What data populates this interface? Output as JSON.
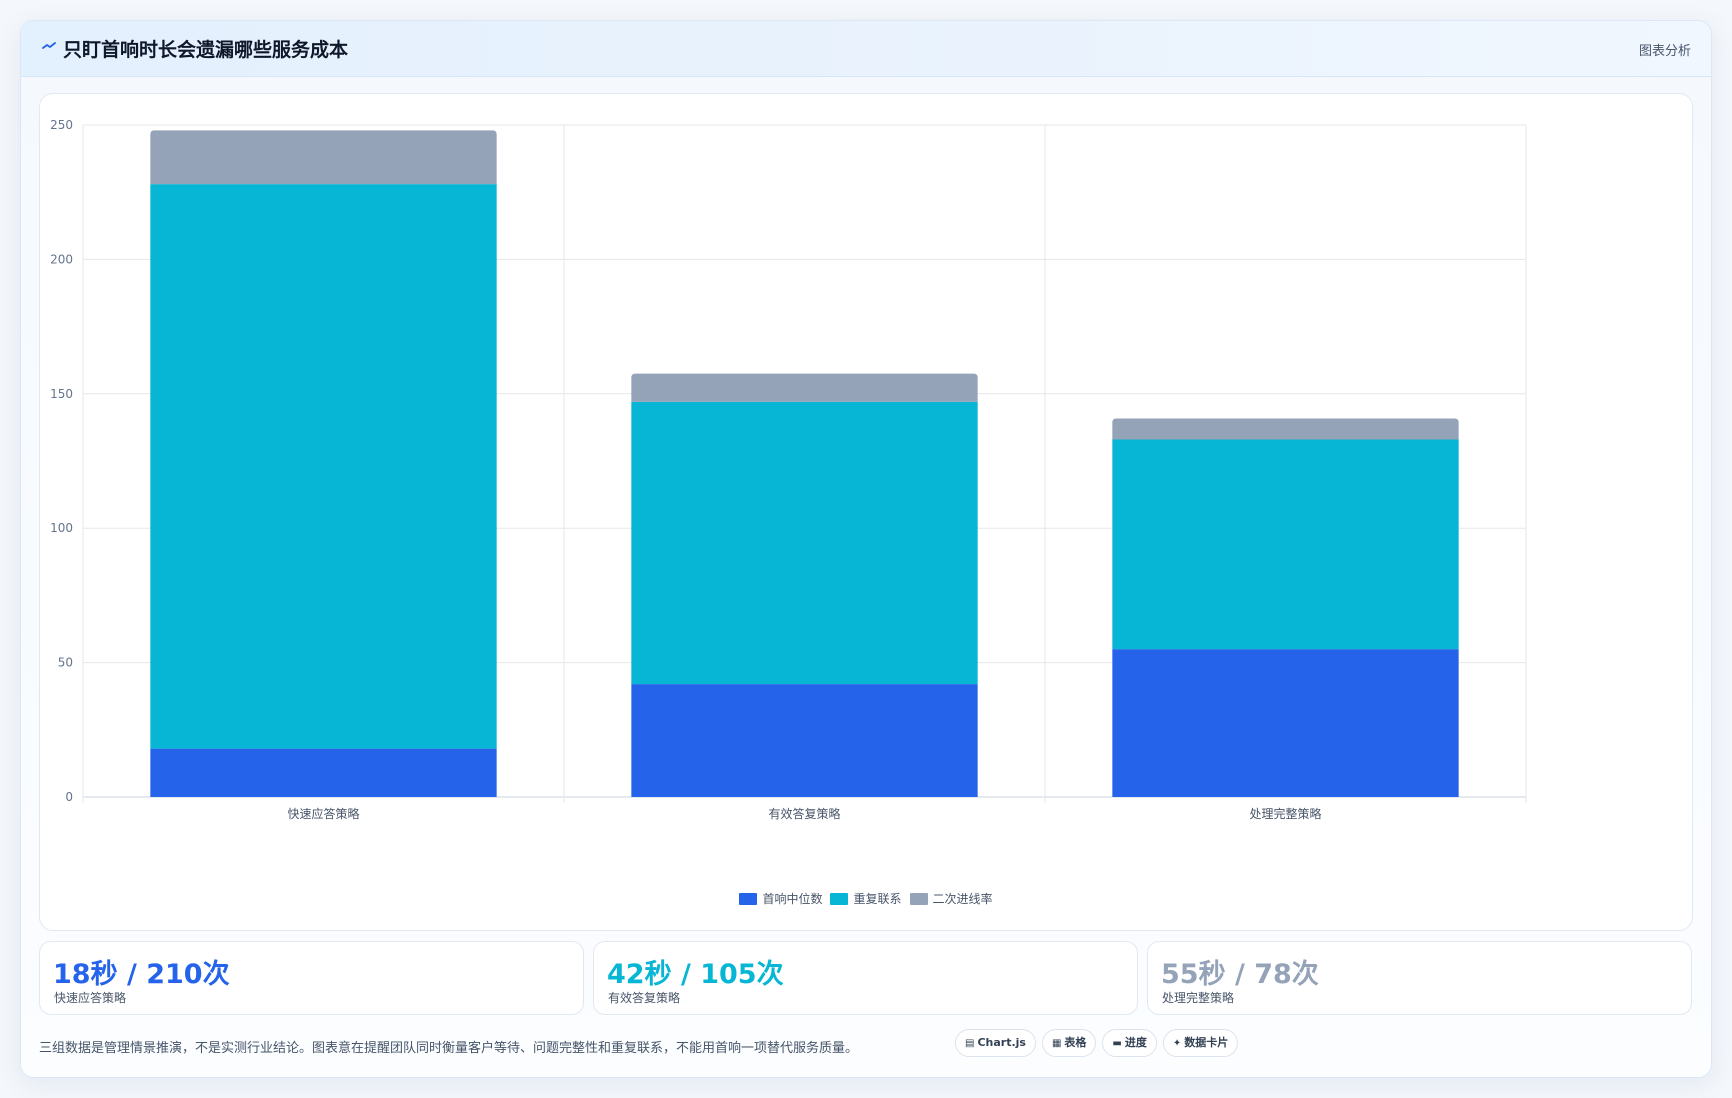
{
  "header": {
    "title": "只盯首响时长会遗漏哪些服务成本",
    "tag": "图表分析",
    "icon": "chart-line-icon"
  },
  "chart_data": {
    "type": "bar",
    "stacked": true,
    "categories": [
      "快速应答策略",
      "有效答复策略",
      "处理完整策略"
    ],
    "series": [
      {
        "name": "首响中位数",
        "values": [
          18,
          42,
          55
        ],
        "color": "#2563eb"
      },
      {
        "name": "重复联系",
        "values": [
          210,
          105,
          78
        ],
        "color": "#06b6d4"
      },
      {
        "name": "二次进线率",
        "values": [
          20,
          10.5,
          7.8
        ],
        "color": "#94a3b8"
      }
    ],
    "ylim": [
      0,
      250
    ],
    "yticks": [
      0,
      50,
      100,
      150,
      200,
      250
    ],
    "grid": true,
    "legend_position": "bottom"
  },
  "stats": [
    {
      "value": "18秒 / 210次",
      "label": "快速应答策略",
      "color": "#2563eb"
    },
    {
      "value": "42秒 / 105次",
      "label": "有效答复策略",
      "color": "#06b6d4"
    },
    {
      "value": "55秒 / 78次",
      "label": "处理完整策略",
      "color": "#94a3b8"
    }
  ],
  "footnote": "三组数据是管理情景推演，不是实测行业结论。图表意在提醒团队同时衡量客户等待、问题完整性和重复联系，不能用首响一项替代服务质量。",
  "chips": [
    {
      "icon": "chart-icon",
      "glyph": "▤",
      "label": "Chart.js"
    },
    {
      "icon": "table-icon",
      "glyph": "▦",
      "label": "表格"
    },
    {
      "icon": "progress-icon",
      "glyph": "▬",
      "label": "进度"
    },
    {
      "icon": "sparkle-icon",
      "glyph": "✦",
      "label": "数据卡片"
    }
  ]
}
